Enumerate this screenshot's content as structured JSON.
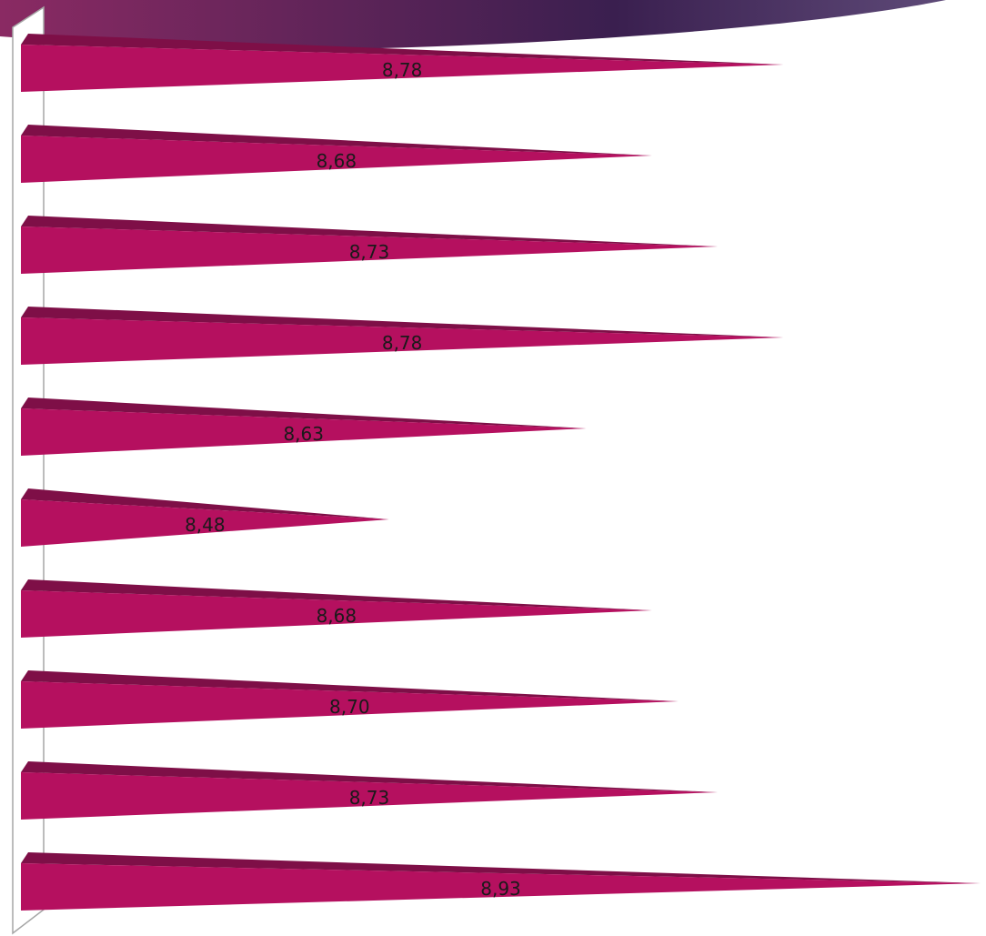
{
  "chart_data": {
    "type": "bar",
    "orientation": "horizontal",
    "bar_style": "3d-cone",
    "values": [
      8.78,
      8.68,
      8.73,
      8.78,
      8.63,
      8.48,
      8.68,
      8.7,
      8.73,
      8.93
    ],
    "data_labels": [
      "8,78",
      "8,68",
      "8,73",
      "8,78",
      "8,63",
      "8,48",
      "8,68",
      "8,70",
      "8,73",
      "8,93"
    ],
    "xlim": [
      8.2,
      8.93
    ],
    "bar_color": "#b5105f",
    "bar_top_color": "#7e0f47",
    "grid": false,
    "legend": "none"
  },
  "theme": {
    "banner_colors": [
      "#8a2a63",
      "#3a1f4f",
      "#5e4a78"
    ],
    "axis_wall_color": "#a6a6a6"
  }
}
